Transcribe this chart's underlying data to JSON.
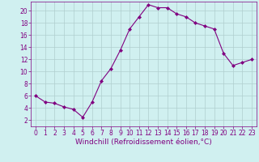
{
  "x": [
    0,
    1,
    2,
    3,
    4,
    5,
    6,
    7,
    8,
    9,
    10,
    11,
    12,
    13,
    14,
    15,
    16,
    17,
    18,
    19,
    20,
    21,
    22,
    23
  ],
  "y": [
    6,
    5,
    4.8,
    4.2,
    3.8,
    2.5,
    5,
    8.5,
    10.5,
    13.5,
    17,
    19,
    21,
    20.5,
    20.5,
    19.5,
    19,
    18,
    17.5,
    17,
    13,
    11,
    11.5,
    12
  ],
  "line_color": "#800080",
  "marker": "D",
  "marker_size": 2,
  "bg_color": "#d0f0f0",
  "grid_color": "#b0cece",
  "xlabel": "Windchill (Refroidissement éolien,°C)",
  "xlabel_fontsize": 6.5,
  "xlim": [
    -0.5,
    23.5
  ],
  "ylim": [
    1,
    21.5
  ],
  "yticks": [
    2,
    4,
    6,
    8,
    10,
    12,
    14,
    16,
    18,
    20
  ],
  "xticks": [
    0,
    1,
    2,
    3,
    4,
    5,
    6,
    7,
    8,
    9,
    10,
    11,
    12,
    13,
    14,
    15,
    16,
    17,
    18,
    19,
    20,
    21,
    22,
    23
  ],
  "tick_fontsize": 5.5,
  "axis_color": "#800080",
  "linewidth": 0.8
}
